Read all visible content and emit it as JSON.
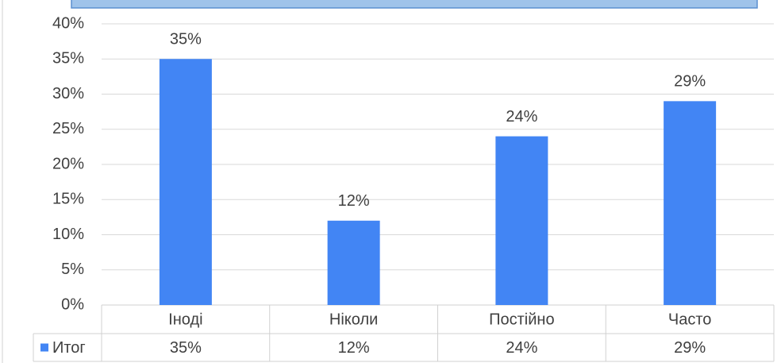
{
  "chart_data": {
    "type": "bar",
    "categories": [
      "Іноді",
      "Ніколи",
      "Постійно",
      "Часто"
    ],
    "series": [
      {
        "name": "Итог",
        "color": "#4285f4",
        "values": [
          35,
          12,
          24,
          29
        ],
        "value_labels": [
          "35%",
          "12%",
          "24%",
          "29%"
        ]
      }
    ],
    "ylim": [
      0,
      40
    ],
    "yticks": [
      {
        "value": 0,
        "label": "0%"
      },
      {
        "value": 5,
        "label": "5%"
      },
      {
        "value": 10,
        "label": "10%"
      },
      {
        "value": 15,
        "label": "15%"
      },
      {
        "value": 20,
        "label": "20%"
      },
      {
        "value": 25,
        "label": "25%"
      },
      {
        "value": 30,
        "label": "30%"
      },
      {
        "value": 35,
        "label": "35%"
      },
      {
        "value": 40,
        "label": "40%"
      }
    ],
    "grid": true
  }
}
